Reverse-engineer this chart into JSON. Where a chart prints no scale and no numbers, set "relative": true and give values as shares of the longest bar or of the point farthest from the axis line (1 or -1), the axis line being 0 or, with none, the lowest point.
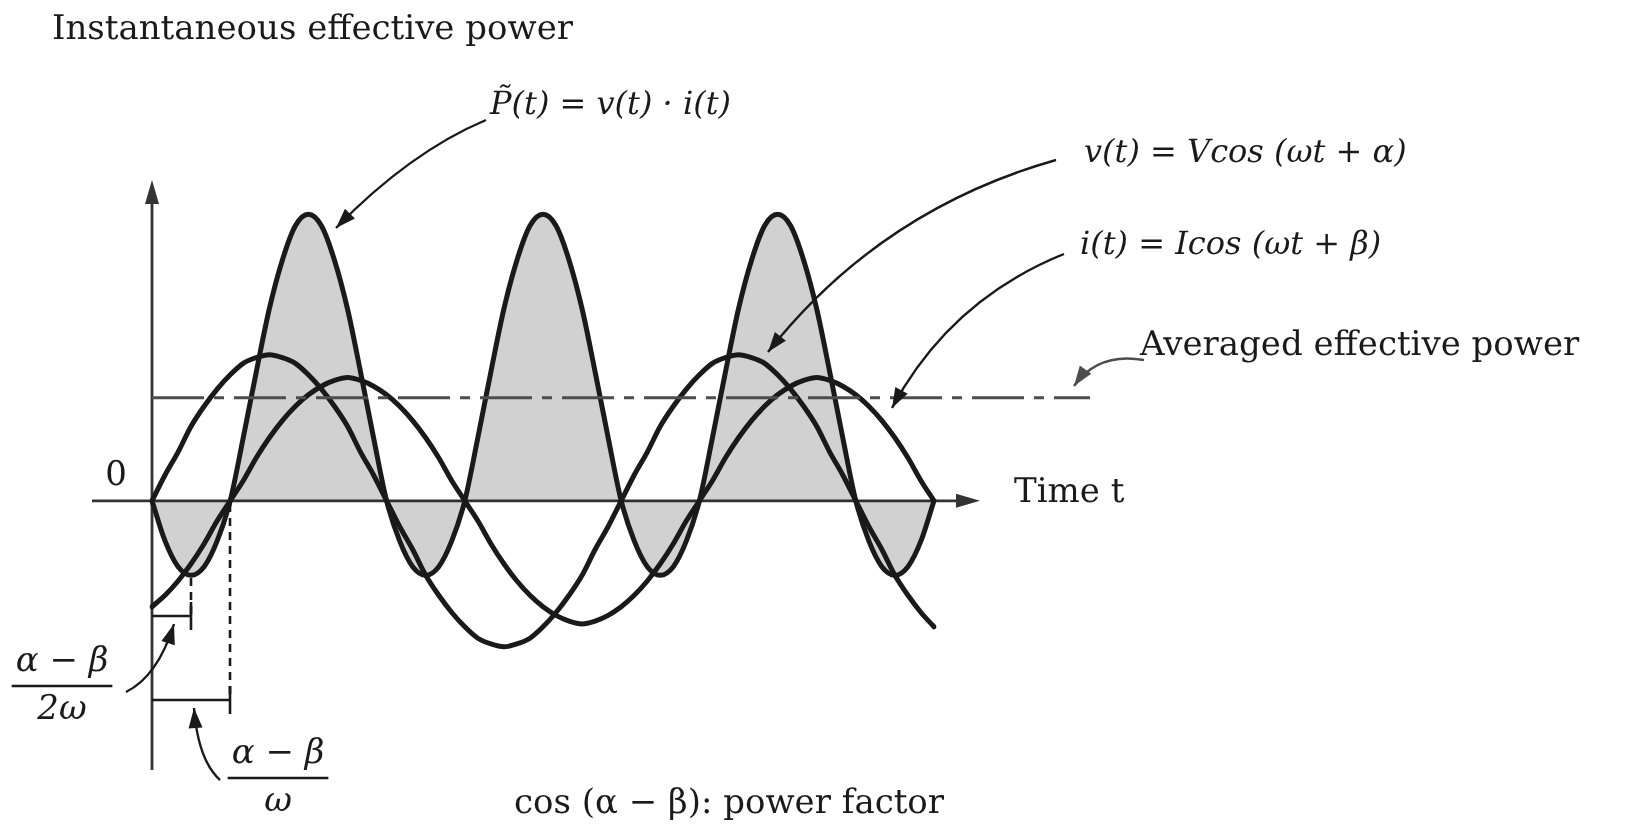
{
  "chart_data": {
    "type": "line",
    "title": "Instantaneous effective power",
    "xlabel": "Time t",
    "relative": true,
    "marker": "none",
    "line_style": "solid",
    "categories": [
      null,
      null,
      null,
      null,
      null,
      null,
      null,
      null,
      null,
      null,
      null,
      null,
      null,
      null,
      null,
      null,
      null,
      null,
      null,
      null,
      null,
      null,
      null,
      null,
      null,
      null,
      null,
      null,
      null,
      null,
      null,
      null,
      null,
      null,
      null,
      null,
      null,
      null,
      null,
      null,
      null,
      null,
      null,
      null,
      null,
      null,
      null,
      null,
      null,
      null,
      null,
      null,
      null,
      null,
      null,
      null,
      null,
      null,
      null,
      null,
      null
    ],
    "series": [
      {
        "name": "P̃(t) = v(t) · i(t)",
        "type": "area",
        "color": "#1a1a1a",
        "values": [
          0,
          -0.14,
          -0.23,
          -0.26,
          -0.23,
          -0.14,
          0,
          0.22,
          0.45,
          0.67,
          0.84,
          0.96,
          1,
          0.96,
          0.84,
          0.67,
          0.45,
          0.22,
          0,
          -0.14,
          -0.23,
          -0.26,
          -0.23,
          -0.14,
          0,
          0.22,
          0.45,
          0.67,
          0.84,
          0.96,
          1,
          0.96,
          0.84,
          0.67,
          0.45,
          0.22,
          0,
          -0.14,
          -0.23,
          -0.26,
          -0.23,
          -0.14,
          0,
          0.22,
          0.45,
          0.67,
          0.84,
          0.96,
          1,
          0.96,
          0.84,
          0.67,
          0.45,
          0.22,
          0,
          -0.14,
          -0.23,
          -0.26,
          -0.23,
          -0.14,
          0
        ]
      },
      {
        "name": "v(t) = Vcos (ωt + α)",
        "color": "#1a1a1a",
        "values": [
          0,
          0.09,
          0.17,
          0.26,
          0.33,
          0.39,
          0.44,
          0.48,
          0.5,
          0.51,
          0.5,
          0.48,
          0.44,
          0.39,
          0.33,
          0.26,
          0.17,
          0.09,
          0,
          -0.09,
          -0.17,
          -0.26,
          -0.33,
          -0.39,
          -0.44,
          -0.48,
          -0.5,
          -0.51,
          -0.5,
          -0.48,
          -0.44,
          -0.39,
          -0.33,
          -0.26,
          -0.17,
          -0.09,
          0,
          0.09,
          0.17,
          0.26,
          0.33,
          0.39,
          0.44,
          0.48,
          0.5,
          0.51,
          0.5,
          0.48,
          0.44,
          0.39,
          0.33,
          0.26,
          0.17,
          0.09,
          0,
          -0.09,
          -0.17,
          -0.26,
          -0.33,
          -0.39,
          -0.44
        ]
      },
      {
        "name": "i(t) = Icos (ωt + β)",
        "color": "#1a1a1a",
        "values": [
          -0.37,
          -0.33,
          -0.28,
          -0.22,
          -0.15,
          -0.07,
          0,
          0.07,
          0.15,
          0.22,
          0.28,
          0.33,
          0.37,
          0.4,
          0.42,
          0.43,
          0.42,
          0.4,
          0.37,
          0.33,
          0.28,
          0.22,
          0.15,
          0.07,
          0,
          -0.07,
          -0.15,
          -0.22,
          -0.28,
          -0.33,
          -0.37,
          -0.4,
          -0.42,
          -0.43,
          -0.42,
          -0.4,
          -0.37,
          -0.33,
          -0.28,
          -0.22,
          -0.15,
          -0.07,
          0,
          0.07,
          0.15,
          0.22,
          0.28,
          0.33,
          0.37,
          0.4,
          0.42,
          0.43,
          0.42,
          0.4,
          0.37,
          0.33,
          0.28,
          0.22,
          0.15,
          0.07,
          0
        ]
      }
    ],
    "ref_lines": [
      {
        "axis": "y",
        "value": 0.36,
        "label": "Averaged effective power",
        "line_style": "dashed",
        "color": "#4d4d4d"
      }
    ],
    "annotations": [
      "0",
      "α − β\n2ω",
      "α − β\nω",
      "cos (α − β): power factor"
    ]
  }
}
